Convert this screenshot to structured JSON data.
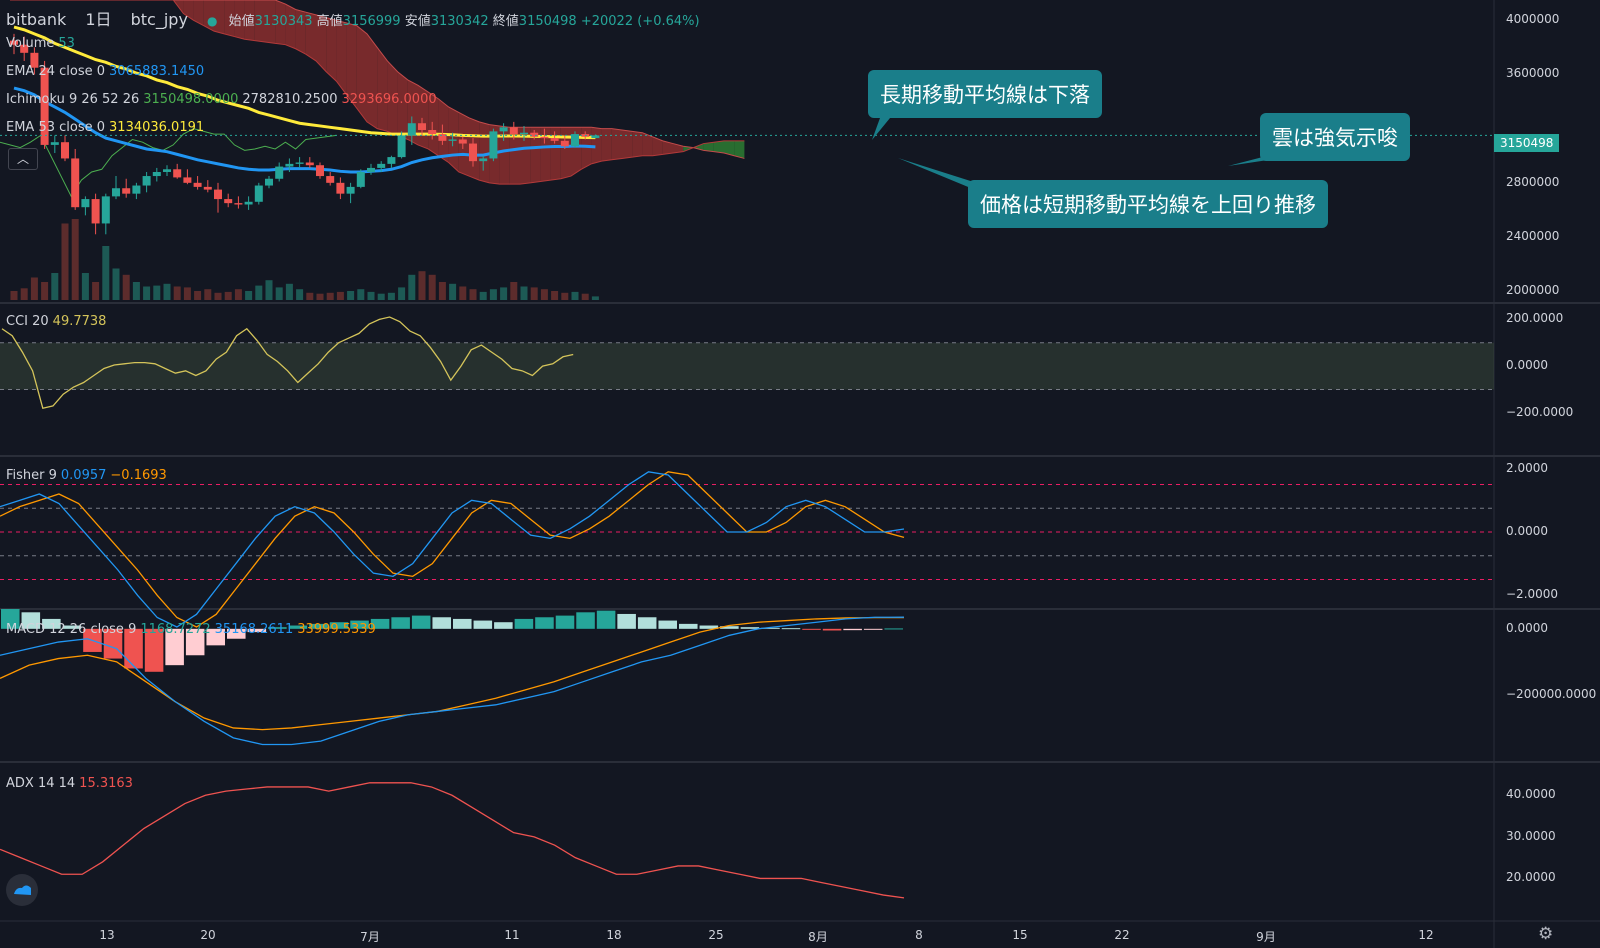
{
  "header": {
    "exchange": "bitbank",
    "interval": "1日",
    "symbol": "btc_jpy",
    "open_label": "始値",
    "open": "3130343",
    "high_label": "高値",
    "high": "3156999",
    "low_label": "安値",
    "low": "3130342",
    "close_label": "終値",
    "close": "3150498",
    "change": "+20022 (+0.64%)"
  },
  "legends": {
    "volume": {
      "label": "Volume",
      "value": "53"
    },
    "ema24": {
      "label": "EMA 24 close 0",
      "value": "3065883.1450"
    },
    "ichimoku": {
      "label": "Ichimoku 9 26 52 26",
      "v1": "3150498.0000",
      "v2": "2782810.2500",
      "v3": "3293696.0000"
    },
    "ema53": {
      "label": "EMA 53 close 0",
      "value": "3134036.0191"
    },
    "cci": {
      "label": "CCI 20",
      "value": "49.7738"
    },
    "fisher": {
      "label": "Fisher 9",
      "v1": "0.0957",
      "v2": "−0.1693"
    },
    "macd": {
      "label": "MACD 12 26 close 9",
      "v1": "1168.7272",
      "v2": "35168.2611",
      "v3": "33999.5339"
    },
    "adx": {
      "label": "ADX 14 14",
      "value": "15.3163"
    }
  },
  "callouts": {
    "long_ma": "長期移動平均線は下落",
    "cloud": "雲は強気示唆",
    "price": "価格は短期移動平均線を上回り推移"
  },
  "price_tag": "3150498",
  "colors": {
    "background": "#131722",
    "up": "#26a69a",
    "down": "#ef5350",
    "ema24": "#2196f3",
    "ema53": "#ffeb3b",
    "cloud_bear": "#8b2e2e",
    "cloud_bull": "#2e7d32",
    "callout": "#1a7e8a"
  },
  "chart_data": {
    "type": "candlestick",
    "x_ticks": [
      "13",
      "20",
      "7月",
      "11",
      "18",
      "25",
      "8月",
      "8",
      "15",
      "22",
      "9月",
      "12"
    ],
    "price_axis": {
      "ticks": [
        "4000000",
        "3600000",
        "3200000",
        "2800000",
        "2400000",
        "2000000"
      ],
      "ylim": [
        1920000,
        4150000
      ]
    },
    "candles": [
      [
        3850000,
        3900000,
        3750000,
        3820000
      ],
      [
        3820000,
        3880000,
        3700000,
        3760000
      ],
      [
        3760000,
        3800000,
        3600000,
        3650000
      ],
      [
        3650000,
        3700000,
        3050000,
        3080000
      ],
      [
        3080000,
        3150000,
        3020000,
        3100000
      ],
      [
        3100000,
        3150000,
        2960000,
        2980000
      ],
      [
        2980000,
        3050000,
        2600000,
        2620000
      ],
      [
        2620000,
        2700000,
        2560000,
        2680000
      ],
      [
        2680000,
        2720000,
        2420000,
        2500000
      ],
      [
        2500000,
        2720000,
        2420000,
        2700000
      ],
      [
        2700000,
        2850000,
        2680000,
        2760000
      ],
      [
        2760000,
        2830000,
        2690000,
        2720000
      ],
      [
        2720000,
        2800000,
        2680000,
        2780000
      ],
      [
        2780000,
        2880000,
        2730000,
        2850000
      ],
      [
        2850000,
        2910000,
        2810000,
        2880000
      ],
      [
        2880000,
        2930000,
        2850000,
        2900000
      ],
      [
        2900000,
        2940000,
        2830000,
        2840000
      ],
      [
        2840000,
        2900000,
        2790000,
        2800000
      ],
      [
        2800000,
        2850000,
        2750000,
        2770000
      ],
      [
        2770000,
        2820000,
        2730000,
        2750000
      ],
      [
        2750000,
        2800000,
        2580000,
        2680000
      ],
      [
        2680000,
        2720000,
        2620000,
        2650000
      ],
      [
        2650000,
        2700000,
        2610000,
        2640000
      ],
      [
        2640000,
        2700000,
        2600000,
        2660000
      ],
      [
        2660000,
        2800000,
        2640000,
        2780000
      ],
      [
        2780000,
        2850000,
        2760000,
        2830000
      ],
      [
        2830000,
        2950000,
        2810000,
        2920000
      ],
      [
        2920000,
        2980000,
        2880000,
        2940000
      ],
      [
        2940000,
        2990000,
        2910000,
        2950000
      ],
      [
        2950000,
        2990000,
        2910000,
        2930000
      ],
      [
        2930000,
        2950000,
        2830000,
        2850000
      ],
      [
        2850000,
        2880000,
        2780000,
        2800000
      ],
      [
        2800000,
        2840000,
        2680000,
        2720000
      ],
      [
        2720000,
        2800000,
        2650000,
        2770000
      ],
      [
        2770000,
        2900000,
        2760000,
        2880000
      ],
      [
        2880000,
        2940000,
        2860000,
        2910000
      ],
      [
        2910000,
        2960000,
        2880000,
        2940000
      ],
      [
        2940000,
        3000000,
        2910000,
        2990000
      ],
      [
        2990000,
        3180000,
        2980000,
        3150000
      ],
      [
        3150000,
        3290000,
        3080000,
        3240000
      ],
      [
        3240000,
        3280000,
        3150000,
        3190000
      ],
      [
        3190000,
        3250000,
        3120000,
        3160000
      ],
      [
        3160000,
        3230000,
        3080000,
        3110000
      ],
      [
        3110000,
        3170000,
        3070000,
        3120000
      ],
      [
        3120000,
        3140000,
        3050000,
        3090000
      ],
      [
        3090000,
        3130000,
        2920000,
        2960000
      ],
      [
        2960000,
        3000000,
        2890000,
        2980000
      ],
      [
        2980000,
        3200000,
        2960000,
        3180000
      ],
      [
        3180000,
        3240000,
        3110000,
        3210000
      ],
      [
        3210000,
        3250000,
        3120000,
        3160000
      ],
      [
        3160000,
        3220000,
        3110000,
        3170000
      ],
      [
        3170000,
        3190000,
        3120000,
        3140000
      ],
      [
        3140000,
        3200000,
        3090000,
        3130000
      ],
      [
        3130000,
        3180000,
        3090000,
        3110000
      ],
      [
        3110000,
        3150000,
        3050000,
        3070000
      ],
      [
        3070000,
        3180000,
        3060000,
        3160000
      ],
      [
        3160000,
        3180000,
        3120000,
        3140000
      ],
      [
        3130343,
        3156999,
        3130342,
        3150498
      ]
    ],
    "ema24": [
      3500000,
      3480000,
      3450000,
      3400000,
      3360000,
      3320000,
      3270000,
      3220000,
      3170000,
      3130000,
      3110000,
      3090000,
      3070000,
      3050000,
      3040000,
      3030000,
      3010000,
      2990000,
      2970000,
      2955000,
      2940000,
      2925000,
      2910000,
      2900000,
      2895000,
      2895000,
      2900000,
      2905000,
      2905000,
      2905000,
      2900000,
      2895000,
      2885000,
      2880000,
      2880000,
      2885000,
      2890000,
      2900000,
      2920000,
      2950000,
      2970000,
      2985000,
      2995000,
      3005000,
      3010000,
      3005000,
      3005000,
      3020000,
      3035000,
      3045000,
      3055000,
      3060000,
      3065000,
      3068000,
      3068000,
      3072000,
      3070000,
      3065883
    ],
    "ema53": [
      3950000,
      3930000,
      3900000,
      3870000,
      3830000,
      3800000,
      3770000,
      3740000,
      3710000,
      3690000,
      3660000,
      3640000,
      3610000,
      3590000,
      3560000,
      3540000,
      3510000,
      3490000,
      3460000,
      3440000,
      3410000,
      3390000,
      3370000,
      3350000,
      3320000,
      3300000,
      3280000,
      3260000,
      3240000,
      3230000,
      3220000,
      3210000,
      3200000,
      3190000,
      3180000,
      3170000,
      3165000,
      3160000,
      3160000,
      3160000,
      3160000,
      3160000,
      3158000,
      3155000,
      3150000,
      3148000,
      3145000,
      3145000,
      3146000,
      3146000,
      3145000,
      3143000,
      3142000,
      3140000,
      3138000,
      3137000,
      3135000,
      3134036
    ],
    "cloud_top": [
      4150000,
      4150000,
      4150000,
      4150000,
      4150000,
      4150000,
      4150000,
      4150000,
      4150000,
      4150000,
      4150000,
      4150000,
      4150000,
      4150000,
      4150000,
      4150000,
      4150000,
      4150000,
      4150000,
      4150000,
      4150000,
      4150000,
      4150000,
      4150000,
      4150000,
      4150000,
      4150000,
      4120000,
      4080000,
      4060000,
      4040000,
      4020000,
      4000000,
      3980000,
      3960000,
      3900000,
      3800000,
      3700000,
      3620000,
      3560000,
      3520000,
      3470000,
      3420000,
      3360000,
      3320000,
      3280000,
      3250000,
      3230000,
      3220000,
      3210000,
      3210000,
      3210000,
      3210000,
      3210000,
      3210000,
      3210000,
      3210000,
      3210000,
      3200000,
      3200000,
      3190000,
      3180000,
      3170000,
      3140000,
      3110000,
      3090000,
      3070000,
      3060000,
      3040000,
      3030000,
      3020000,
      3000000,
      2980000
    ],
    "cloud_bottom": [
      4150000,
      4150000,
      4150000,
      4150000,
      4150000,
      4150000,
      4150000,
      4150000,
      4150000,
      4150000,
      4150000,
      4150000,
      4150000,
      4150000,
      4150000,
      4150000,
      4150000,
      4050000,
      4000000,
      3960000,
      3920000,
      3900000,
      3880000,
      3860000,
      3850000,
      3840000,
      3830000,
      3820000,
      3790000,
      3750000,
      3700000,
      3620000,
      3550000,
      3450000,
      3350000,
      3250000,
      3200000,
      3180000,
      3150000,
      3120000,
      3080000,
      3050000,
      3000000,
      2950000,
      2880000,
      2850000,
      2820000,
      2800000,
      2790000,
      2790000,
      2790000,
      2800000,
      2810000,
      2820000,
      2830000,
      2850000,
      2900000,
      2940000,
      2960000,
      2970000,
      2980000,
      2990000,
      3000000,
      3000000,
      3010000,
      3020000,
      3030000,
      3060000,
      3090000,
      3100000,
      3110000,
      3110000,
      3110000
    ],
    "chikou": [
      3100000,
      3080000,
      3060000,
      3100000,
      3150000,
      3000000,
      2850000,
      2700000,
      2820000,
      2880000,
      2900000,
      3000000,
      3060000,
      3120000,
      3100000,
      3060000,
      3040000,
      3080000,
      3160000,
      3200000,
      3180000,
      3160000,
      3160000,
      3080000,
      3040000,
      3050000,
      3070000,
      3050000,
      3100000,
      3050000,
      3120000,
      3130000,
      3140000,
      3150000
    ],
    "volume": [
      0.1,
      0.13,
      0.25,
      0.2,
      0.3,
      0.85,
      0.9,
      0.3,
      0.2,
      0.6,
      0.35,
      0.28,
      0.2,
      0.15,
      0.16,
      0.18,
      0.15,
      0.14,
      0.1,
      0.12,
      0.08,
      0.09,
      0.12,
      0.1,
      0.16,
      0.22,
      0.14,
      0.18,
      0.12,
      0.08,
      0.07,
      0.08,
      0.09,
      0.1,
      0.12,
      0.09,
      0.07,
      0.08,
      0.14,
      0.28,
      0.32,
      0.28,
      0.2,
      0.18,
      0.15,
      0.12,
      0.09,
      0.12,
      0.14,
      0.2,
      0.15,
      0.14,
      0.12,
      0.1,
      0.08,
      0.09,
      0.07,
      0.04
    ],
    "cci": {
      "ticks": [
        "200.0000",
        "0.0000",
        "−200.0000"
      ],
      "ylim": [
        -380,
        270
      ],
      "levels": [
        100,
        -100
      ],
      "values": [
        160,
        130,
        60,
        -20,
        -180,
        -170,
        -120,
        -90,
        -70,
        -40,
        -10,
        5,
        10,
        15,
        15,
        10,
        -10,
        -30,
        -20,
        -40,
        -20,
        30,
        60,
        130,
        160,
        110,
        50,
        20,
        -20,
        -70,
        -30,
        10,
        60,
        100,
        120,
        140,
        180,
        200,
        210,
        190,
        150,
        130,
        80,
        20,
        -60,
        0,
        70,
        90,
        60,
        30,
        -10,
        -20,
        -40,
        0,
        10,
        40,
        49.77
      ]
    },
    "fisher": {
      "ticks": [
        "2.0000",
        "0.0000",
        "−2.0000"
      ],
      "ylim": [
        -2.4,
        2.4
      ],
      "levels": [
        1.5,
        0.75,
        0,
        -0.75,
        -1.5
      ],
      "fisher": [
        0.8,
        1.0,
        1.2,
        0.9,
        0.2,
        -0.5,
        -1.2,
        -2.0,
        -2.7,
        -3.0,
        -2.6,
        -1.8,
        -1.0,
        -0.2,
        0.5,
        0.8,
        0.6,
        0.0,
        -0.7,
        -1.3,
        -1.4,
        -1.0,
        -0.2,
        0.6,
        1.0,
        0.9,
        0.4,
        -0.1,
        -0.2,
        0.1,
        0.5,
        1.0,
        1.5,
        1.9,
        1.8,
        1.2,
        0.6,
        0.0,
        0.0,
        0.3,
        0.8,
        1.0,
        0.8,
        0.4,
        0.0,
        0.0,
        0.0957
      ],
      "trigger": [
        0.5,
        0.8,
        1.0,
        1.2,
        0.9,
        0.2,
        -0.5,
        -1.2,
        -2.0,
        -2.7,
        -3.0,
        -2.6,
        -1.8,
        -1.0,
        -0.2,
        0.5,
        0.8,
        0.6,
        0.0,
        -0.7,
        -1.3,
        -1.4,
        -1.0,
        -0.2,
        0.6,
        1.0,
        0.9,
        0.4,
        -0.1,
        -0.2,
        0.1,
        0.5,
        1.0,
        1.5,
        1.9,
        1.8,
        1.2,
        0.6,
        0.0,
        0.0,
        0.3,
        0.8,
        1.0,
        0.8,
        0.4,
        0.0,
        -0.1693
      ]
    },
    "macd": {
      "ticks": [
        "0.0000",
        "−200000.0000"
      ],
      "ylim": [
        -400000,
        60000
      ],
      "macd": [
        -80000,
        -60000,
        -40000,
        -30000,
        -60000,
        -150000,
        -220000,
        -280000,
        -330000,
        -350000,
        -350000,
        -340000,
        -310000,
        -280000,
        -260000,
        -250000,
        -240000,
        -230000,
        -210000,
        -190000,
        -160000,
        -130000,
        -100000,
        -80000,
        -50000,
        -20000,
        0,
        10000,
        20000,
        30000,
        35000,
        35168
      ],
      "signal": [
        -150000,
        -110000,
        -90000,
        -80000,
        -100000,
        -160000,
        -220000,
        -270000,
        -300000,
        -305000,
        -300000,
        -290000,
        -280000,
        -270000,
        -260000,
        -250000,
        -230000,
        -210000,
        -185000,
        -160000,
        -130000,
        -100000,
        -70000,
        -40000,
        -10000,
        10000,
        20000,
        25000,
        30000,
        33000,
        34000,
        33999
      ],
      "hist": [
        60000,
        50000,
        30000,
        10000,
        -70000,
        -90000,
        -120000,
        -130000,
        -110000,
        -80000,
        -50000,
        -30000,
        -10000,
        5000,
        10000,
        15000,
        20000,
        25000,
        30000,
        35000,
        40000,
        35000,
        30000,
        25000,
        20000,
        30000,
        35000,
        40000,
        50000,
        55000,
        45000,
        35000,
        25000,
        15000,
        10000,
        8000,
        5000,
        3000,
        2000,
        -3000,
        -5000,
        -4000,
        -2000,
        1168
      ]
    },
    "adx": {
      "ticks": [
        "40.0000",
        "30.0000",
        "20.0000"
      ],
      "ylim": [
        10,
        48
      ],
      "values": [
        27,
        25,
        23,
        21,
        21,
        24,
        28,
        32,
        35,
        38,
        40,
        41,
        41.5,
        42,
        42,
        42,
        41,
        42,
        43,
        43,
        43,
        42,
        40,
        37,
        34,
        31,
        30,
        28,
        25,
        23,
        21,
        21,
        22,
        23,
        23,
        22,
        21,
        20,
        20,
        20,
        19,
        18,
        17,
        16,
        15.3163
      ]
    }
  }
}
